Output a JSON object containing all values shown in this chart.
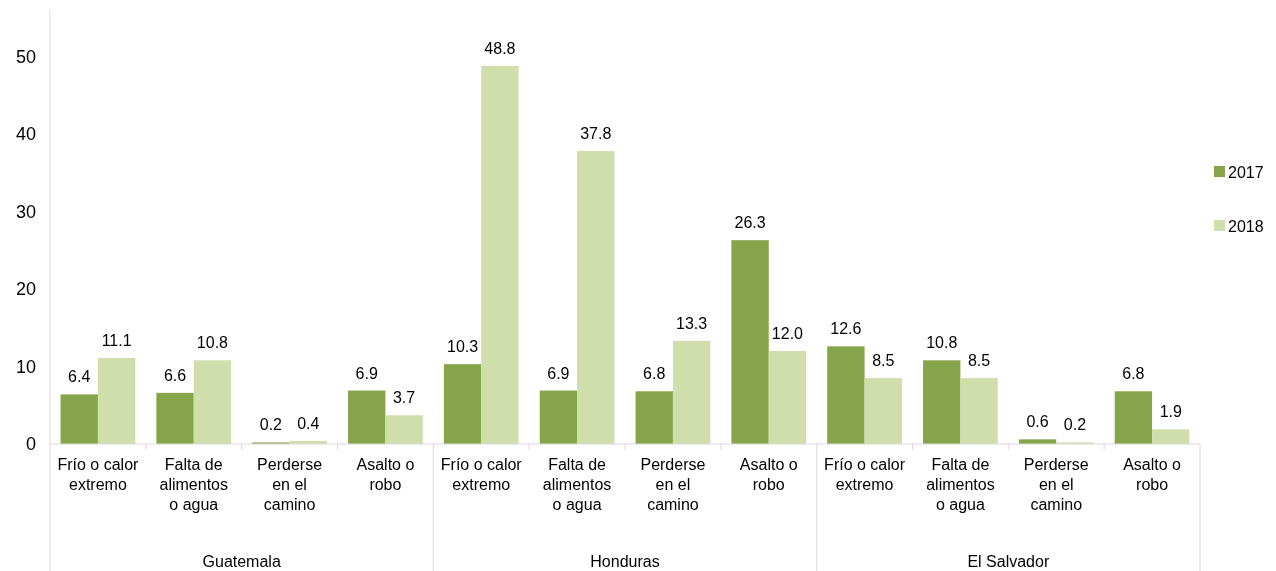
{
  "chart_data": {
    "type": "bar",
    "categories": [
      "Frío o calor\nextremo",
      "Falta de\nalimentos\no agua",
      "Perderse\nen el\ncamino",
      "Asalto o\nrobo",
      "Frío o calor\nextremo",
      "Falta de\nalimentos\no agua",
      "Perderse\nen el\ncamino",
      "Asalto o\nrobo",
      "Frío o calor\nextremo",
      "Falta de\nalimentos\no agua",
      "Perderse\nen el\ncamino",
      "Asalto o\nrobo"
    ],
    "series": [
      {
        "name": "2017",
        "color": "#86a44a",
        "values": [
          6.4,
          6.6,
          0.2,
          6.9,
          10.3,
          6.9,
          6.8,
          26.3,
          12.6,
          10.8,
          0.6,
          6.8
        ],
        "value_labels": [
          "6.4",
          "6.6",
          "0.2",
          "6.9",
          "10.3",
          "6.9",
          "6.8",
          "26.3",
          "12.6",
          "10.8",
          "0.6",
          "6.8"
        ]
      },
      {
        "name": "2018",
        "color": "#cfdeaa",
        "values": [
          11.1,
          10.8,
          0.4,
          3.7,
          48.8,
          37.8,
          13.3,
          12.0,
          8.5,
          8.5,
          0.2,
          1.9
        ],
        "value_labels": [
          "11.1",
          "10.8",
          "0.4",
          "3.7",
          "48.8",
          "37.8",
          "13.3",
          "12.0",
          "8.5",
          "8.5",
          "0.2",
          "1.9"
        ]
      }
    ],
    "annotations": [
      "Guatemala",
      "Honduras",
      "El Salvador"
    ],
    "ylim": [
      0,
      56
    ],
    "yticks": [
      0,
      10,
      20,
      30,
      40,
      50
    ],
    "grid": false,
    "legend": "right"
  }
}
